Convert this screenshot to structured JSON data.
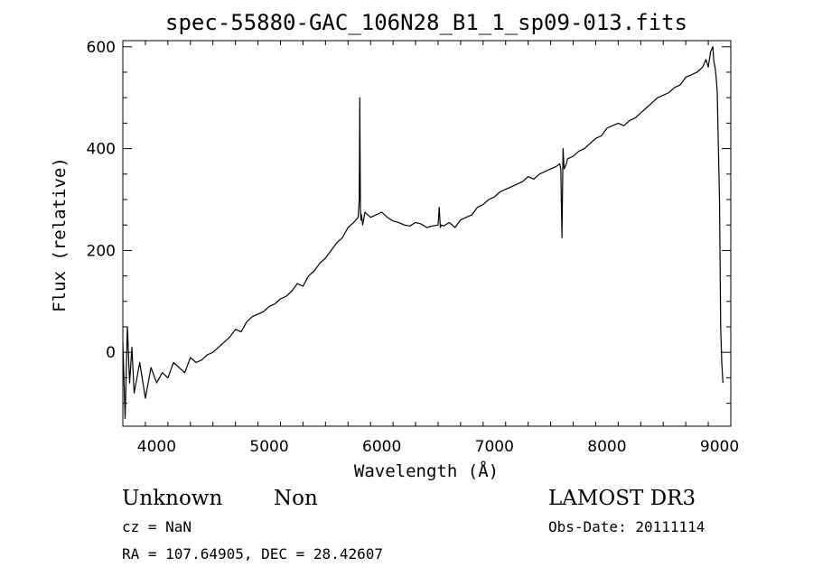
{
  "chart_data": {
    "type": "line",
    "title": "spec-55880-GAC_106N28_B1_1_sp09-013.fits",
    "xlabel": "Wavelength (Å)",
    "ylabel": "Flux (relative)",
    "xlim": [
      3700,
      9100
    ],
    "ylim": [
      -145,
      612
    ],
    "xticks": [
      4000,
      5000,
      6000,
      7000,
      8000,
      9000
    ],
    "yticks": [
      0,
      200,
      400,
      600
    ],
    "grid": false,
    "series": [
      {
        "x": [
          3700,
          3720,
          3740,
          3760,
          3780,
          3800,
          3850,
          3900,
          3950,
          4000,
          4050,
          4100,
          4150,
          4200,
          4250,
          4300,
          4350,
          4400,
          4450,
          4500,
          4550,
          4600,
          4650,
          4700,
          4750,
          4800,
          4850,
          4900,
          4950,
          5000,
          5050,
          5100,
          5150,
          5200,
          5250,
          5300,
          5350,
          5400,
          5450,
          5500,
          5550,
          5600,
          5650,
          5700,
          5750,
          5790,
          5800,
          5805,
          5810,
          5815,
          5820,
          5830,
          5850,
          5900,
          5950,
          6000,
          6050,
          6100,
          6150,
          6200,
          6250,
          6300,
          6350,
          6400,
          6450,
          6500,
          6510,
          6520,
          6530,
          6550,
          6600,
          6650,
          6700,
          6750,
          6800,
          6850,
          6900,
          6950,
          7000,
          7050,
          7100,
          7150,
          7200,
          7250,
          7300,
          7350,
          7400,
          7450,
          7500,
          7550,
          7580,
          7590,
          7600,
          7610,
          7620,
          7640,
          7650,
          7700,
          7750,
          7800,
          7850,
          7900,
          7950,
          8000,
          8050,
          8100,
          8150,
          8200,
          8250,
          8300,
          8350,
          8400,
          8450,
          8500,
          8550,
          8600,
          8650,
          8700,
          8750,
          8800,
          8850,
          8880,
          8900,
          8920,
          8940,
          8950,
          8960,
          8970,
          8980,
          8990,
          9000,
          9010,
          9020,
          9030
        ],
        "y": [
          20,
          -130,
          50,
          -60,
          10,
          -80,
          -20,
          -90,
          -30,
          -60,
          -40,
          -50,
          -20,
          -30,
          -40,
          -10,
          -20,
          -15,
          -5,
          0,
          10,
          20,
          30,
          45,
          40,
          60,
          70,
          75,
          80,
          90,
          95,
          105,
          110,
          120,
          135,
          130,
          150,
          160,
          175,
          185,
          200,
          215,
          225,
          245,
          255,
          265,
          300,
          500,
          280,
          260,
          270,
          250,
          275,
          265,
          270,
          275,
          265,
          258,
          255,
          250,
          248,
          255,
          252,
          245,
          248,
          250,
          285,
          245,
          250,
          248,
          255,
          245,
          260,
          265,
          270,
          285,
          290,
          300,
          305,
          315,
          320,
          325,
          330,
          335,
          345,
          340,
          350,
          355,
          360,
          365,
          370,
          360,
          225,
          400,
          360,
          370,
          380,
          385,
          395,
          400,
          410,
          420,
          425,
          440,
          445,
          450,
          445,
          455,
          460,
          470,
          480,
          490,
          500,
          505,
          510,
          520,
          525,
          540,
          545,
          550,
          560,
          575,
          560,
          590,
          600,
          570,
          560,
          540,
          510,
          400,
          300,
          50,
          -20,
          -60
        ]
      }
    ],
    "annotations": {
      "object_class": "Unknown",
      "object_subclass": "Non",
      "redshift": "cz = NaN",
      "coords": "RA = 107.64905, DEC =  28.42607",
      "survey": "LAMOST DR3",
      "obs_date": "Obs-Date: 20111114"
    }
  }
}
